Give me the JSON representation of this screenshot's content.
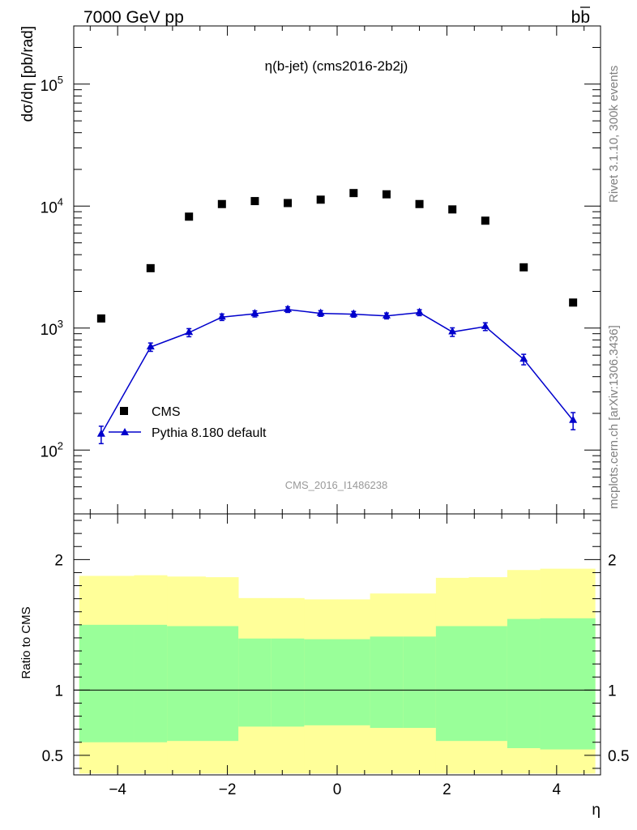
{
  "header": {
    "left": "7000 GeV pp",
    "right_base": "b",
    "right_bar": "b"
  },
  "side_labels": {
    "rivet": "Rivet 3.1.10,  300k events",
    "mcplots": "mcplots.cern.ch [arXiv:1306.3436]"
  },
  "chart_data": {
    "type": "scatter",
    "title": "η(b-jet) (cms2016-2b2j)",
    "watermark": "CMS_2016_I1486238",
    "ylabel": "dσ/dη [pb/rad]",
    "xlabel": "η",
    "xlim": [
      -4.8,
      4.8
    ],
    "ylim": [
      30,
      300000
    ],
    "yscale": "log",
    "x_ticks": [
      "−4",
      "−2",
      "0",
      "2",
      "4"
    ],
    "x_tick_values": [
      -4,
      -2,
      0,
      2,
      4
    ],
    "y_ticks": [
      {
        "base": "10",
        "exp": "2",
        "value": 100
      },
      {
        "base": "10",
        "exp": "3",
        "value": 1000
      },
      {
        "base": "10",
        "exp": "4",
        "value": 10000
      },
      {
        "base": "10",
        "exp": "5",
        "value": 100000
      }
    ],
    "legend": {
      "placement": "lower-left",
      "entries": [
        "CMS",
        "Pythia 8.180 default"
      ]
    },
    "series": [
      {
        "name": "CMS",
        "marker": "square",
        "color": "#000000",
        "x": [
          -4.3,
          -3.4,
          -2.7,
          -2.1,
          -1.5,
          -0.9,
          -0.3,
          0.3,
          0.9,
          1.5,
          2.1,
          2.7,
          3.4,
          4.3
        ],
        "values": [
          1200,
          3100,
          8200,
          10400,
          11000,
          10600,
          11300,
          12800,
          12500,
          10400,
          9400,
          7600,
          3150,
          1620
        ]
      },
      {
        "name": "Pythia 8.180 default",
        "marker": "triangle",
        "color": "#0000cc",
        "x": [
          -4.3,
          -3.4,
          -2.7,
          -2.1,
          -1.5,
          -0.9,
          -0.3,
          0.3,
          0.9,
          1.5,
          2.1,
          2.7,
          3.4,
          4.3
        ],
        "values": [
          135,
          700,
          920,
          1230,
          1310,
          1420,
          1320,
          1300,
          1260,
          1340,
          930,
          1030,
          555,
          175
        ],
        "err": [
          22,
          55,
          70,
          75,
          75,
          75,
          70,
          70,
          70,
          75,
          75,
          75,
          55,
          28
        ]
      }
    ],
    "ratio_panel": {
      "ylabel": "Ratio to CMS",
      "ylim": [
        0.35,
        2.35
      ],
      "y_ticks": [
        "0.5",
        "1",
        "2"
      ],
      "y_tick_values": [
        0.5,
        1,
        2
      ],
      "reference_line": 1,
      "band_edges": [
        -4.7,
        -3.7,
        -3.1,
        -2.4,
        -1.8,
        -1.2,
        -0.6,
        0.0,
        0.6,
        1.2,
        1.8,
        2.4,
        3.1,
        3.7,
        4.7
      ],
      "inner_band": {
        "color": "#99ff99",
        "low": [
          0.6,
          0.6,
          0.61,
          0.61,
          0.72,
          0.72,
          0.73,
          0.73,
          0.71,
          0.71,
          0.61,
          0.61,
          0.555,
          0.545
        ],
        "high": [
          1.5,
          1.5,
          1.49,
          1.49,
          1.395,
          1.395,
          1.39,
          1.39,
          1.41,
          1.41,
          1.49,
          1.49,
          1.545,
          1.55
        ]
      },
      "outer_band": {
        "color": "#ffff99",
        "low": [
          0.36,
          0.36,
          0.36,
          0.36,
          0.36,
          0.36,
          0.36,
          0.36,
          0.36,
          0.36,
          0.36,
          0.36,
          0.36,
          0.36
        ],
        "high": [
          1.875,
          1.88,
          1.87,
          1.865,
          1.705,
          1.705,
          1.695,
          1.695,
          1.74,
          1.74,
          1.86,
          1.865,
          1.92,
          1.93
        ]
      }
    }
  }
}
